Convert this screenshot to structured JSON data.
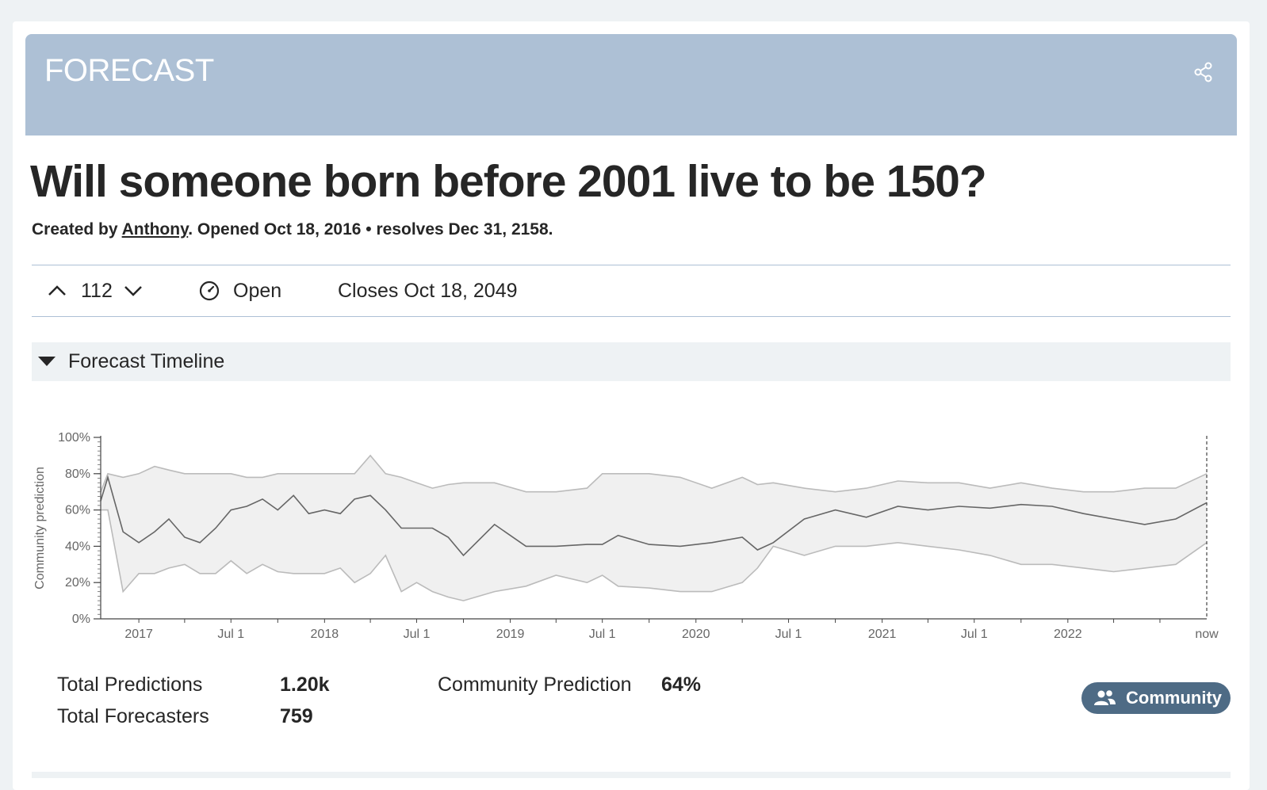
{
  "banner": {
    "title": "FORECAST",
    "share_icon": "share-icon"
  },
  "question": {
    "title": "Will someone born before 2001 live to be 150?",
    "created_prefix": "Created by",
    "author": "Anthony",
    "opened": ". Opened Oct 18, 2016 • resolves Dec 31, 2158."
  },
  "status_bar": {
    "votes": "112",
    "status": "Open",
    "closes": "Closes Oct 18, 2049"
  },
  "timeline": {
    "title": "Forecast Timeline"
  },
  "stats": {
    "total_predictions_label": "Total Predictions",
    "total_predictions_value": "1.20k",
    "total_forecasters_label": "Total Forecasters",
    "total_forecasters_value": "759",
    "community_prediction_label": "Community Prediction",
    "community_prediction_value": "64%",
    "community_button": "Community"
  },
  "colors": {
    "banner": "#adc0d5",
    "band_fill": "#f0f0f0",
    "band_line": "#bbbbbb",
    "median_line": "#666666",
    "button": "#4e6b85"
  },
  "chart_data": {
    "type": "area",
    "ylabel": "Community prediction",
    "ylim": [
      0,
      100
    ],
    "yticks": [
      "0%",
      "20%",
      "40%",
      "60%",
      "80%",
      "100%"
    ],
    "x_tick_labels": [
      "2017",
      "Jul 1",
      "2018",
      "Jul 1",
      "2019",
      "Jul 1",
      "2020",
      "Jul 1",
      "2021",
      "Jul 1",
      "2022",
      "now"
    ],
    "x": [
      "2016-10-18",
      "2016-11-01",
      "2016-12-01",
      "2017-01-01",
      "2017-02-01",
      "2017-03-01",
      "2017-04-01",
      "2017-05-01",
      "2017-06-01",
      "2017-07-01",
      "2017-08-01",
      "2017-09-01",
      "2017-10-01",
      "2017-11-01",
      "2017-12-01",
      "2018-01-01",
      "2018-02-01",
      "2018-03-01",
      "2018-04-01",
      "2018-05-01",
      "2018-06-01",
      "2018-07-01",
      "2018-08-01",
      "2018-09-01",
      "2018-10-01",
      "2018-12-01",
      "2019-02-01",
      "2019-04-01",
      "2019-06-01",
      "2019-07-01",
      "2019-08-01",
      "2019-10-01",
      "2019-12-01",
      "2020-02-01",
      "2020-04-01",
      "2020-05-01",
      "2020-06-01",
      "2020-08-01",
      "2020-10-01",
      "2020-12-01",
      "2021-02-01",
      "2021-04-01",
      "2021-06-01",
      "2021-08-01",
      "2021-10-01",
      "2021-12-01",
      "2022-02-01",
      "2022-04-01",
      "2022-06-01",
      "2022-08-01",
      "2022-10-01"
    ],
    "series": [
      {
        "name": "median",
        "values": [
          65,
          78,
          48,
          42,
          48,
          55,
          45,
          42,
          50,
          60,
          62,
          66,
          60,
          68,
          58,
          60,
          58,
          66,
          68,
          60,
          50,
          50,
          50,
          45,
          35,
          52,
          40,
          40,
          41,
          41,
          46,
          41,
          40,
          42,
          45,
          38,
          42,
          55,
          60,
          56,
          62,
          60,
          62,
          61,
          63,
          62,
          58,
          55,
          52,
          55,
          64
        ]
      },
      {
        "name": "upper",
        "values": [
          70,
          80,
          78,
          80,
          84,
          82,
          80,
          80,
          80,
          80,
          78,
          78,
          80,
          80,
          80,
          80,
          80,
          80,
          90,
          80,
          78,
          75,
          72,
          74,
          75,
          75,
          70,
          70,
          72,
          80,
          80,
          80,
          78,
          72,
          78,
          74,
          75,
          72,
          70,
          72,
          76,
          75,
          75,
          72,
          75,
          72,
          70,
          70,
          72,
          72,
          80
        ]
      },
      {
        "name": "lower",
        "values": [
          60,
          60,
          15,
          25,
          25,
          28,
          30,
          25,
          25,
          32,
          25,
          30,
          26,
          25,
          25,
          25,
          28,
          20,
          25,
          35,
          15,
          20,
          15,
          12,
          10,
          15,
          18,
          24,
          20,
          24,
          18,
          17,
          15,
          15,
          20,
          28,
          40,
          35,
          40,
          40,
          42,
          40,
          38,
          35,
          30,
          30,
          28,
          26,
          28,
          30,
          42
        ]
      }
    ]
  }
}
